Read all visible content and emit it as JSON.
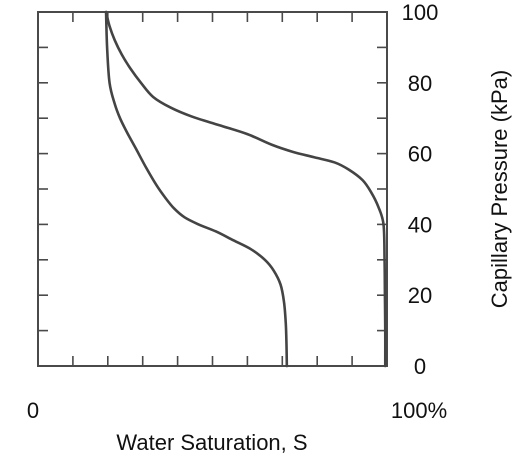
{
  "chart_data": {
    "type": "line",
    "xlabel": "Water Saturation, S",
    "ylabel": "Capillary Pressure (kPa)",
    "xlim": [
      0,
      100
    ],
    "ylim": [
      0,
      100
    ],
    "x_tick_labels": [
      "0",
      "100%"
    ],
    "y_ticks": [
      0,
      20,
      40,
      60,
      80,
      100
    ],
    "y_tick_labels": [
      "0",
      "20",
      "40",
      "60",
      "80",
      "100"
    ],
    "y_axis_side": "right",
    "grid": false,
    "line_color": "#444444",
    "series": [
      {
        "points": [
          [
            19.5,
            100
          ],
          [
            20.5,
            96
          ],
          [
            22,
            92
          ],
          [
            24,
            88
          ],
          [
            26.5,
            84
          ],
          [
            29.5,
            80
          ],
          [
            33,
            76
          ],
          [
            38,
            73
          ],
          [
            44,
            70.5
          ],
          [
            52,
            68
          ],
          [
            60,
            65.5
          ],
          [
            67,
            62.5
          ],
          [
            73,
            60.5
          ],
          [
            79,
            59
          ],
          [
            85,
            57.5
          ],
          [
            89,
            55.5
          ],
          [
            93,
            52.5
          ],
          [
            95.5,
            49
          ],
          [
            97.5,
            45
          ],
          [
            99,
            40
          ],
          [
            99.3,
            30
          ],
          [
            99.4,
            20
          ],
          [
            99.5,
            10
          ],
          [
            99.5,
            0
          ]
        ]
      },
      {
        "points": [
          [
            19.5,
            100
          ],
          [
            19.8,
            90
          ],
          [
            20.5,
            80
          ],
          [
            22,
            74
          ],
          [
            23.5,
            70
          ],
          [
            25.5,
            66
          ],
          [
            28,
            61.5
          ],
          [
            31,
            56
          ],
          [
            34,
            51
          ],
          [
            36.5,
            47.5
          ],
          [
            39,
            44.5
          ],
          [
            42,
            42
          ],
          [
            46,
            40
          ],
          [
            51,
            38
          ],
          [
            56,
            35.5
          ],
          [
            61,
            33
          ],
          [
            65,
            30
          ],
          [
            67.5,
            27
          ],
          [
            69.5,
            23
          ],
          [
            70.5,
            18
          ],
          [
            71,
            12
          ],
          [
            71.2,
            6
          ],
          [
            71.3,
            0
          ]
        ]
      }
    ]
  }
}
